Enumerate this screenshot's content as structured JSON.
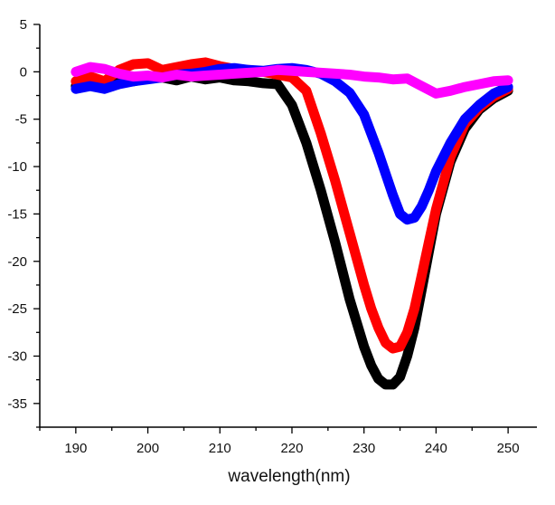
{
  "chart_data": {
    "type": "line",
    "title": "",
    "xlabel": "wavelength(nm)",
    "ylabel": "",
    "xlim": [
      185,
      254
    ],
    "ylim": [
      -37.5,
      5
    ],
    "xticks": [
      190,
      200,
      210,
      220,
      230,
      240,
      250
    ],
    "yticks": [
      5,
      0,
      -5,
      -10,
      -15,
      -20,
      -25,
      -30,
      -35
    ],
    "series": [
      {
        "name": "black",
        "color": "#000000",
        "x": [
          190,
          192,
          194,
          196,
          198,
          200,
          202,
          204,
          206,
          208,
          210,
          212,
          214,
          216,
          218,
          220,
          222,
          224,
          226,
          228,
          230,
          231,
          232,
          233,
          234,
          235,
          236,
          237,
          238,
          239,
          240,
          242,
          244,
          246,
          248,
          250
        ],
        "y": [
          -1.5,
          -1.0,
          -1.3,
          -0.8,
          -1.0,
          -0.7,
          -0.6,
          -0.9,
          -0.5,
          -0.8,
          -0.6,
          -0.9,
          -1.0,
          -1.2,
          -1.3,
          -3.5,
          -7.5,
          -12.5,
          -18.0,
          -24.0,
          -29.0,
          -31.0,
          -32.4,
          -33.0,
          -33.0,
          -32.2,
          -30.0,
          -27.0,
          -23.0,
          -19.0,
          -15.0,
          -9.5,
          -6.0,
          -4.0,
          -2.8,
          -2.0
        ]
      },
      {
        "name": "red",
        "color": "#ff0000",
        "x": [
          190,
          192,
          194,
          196,
          198,
          200,
          202,
          204,
          206,
          208,
          210,
          212,
          214,
          216,
          218,
          220,
          222,
          224,
          226,
          228,
          230,
          231,
          232,
          233,
          234,
          235,
          236,
          237,
          238,
          239,
          240,
          242,
          244,
          246,
          248,
          250
        ],
        "y": [
          -1.0,
          -0.5,
          -1.0,
          0.2,
          0.8,
          0.9,
          0.2,
          0.5,
          0.8,
          1.0,
          0.6,
          0.3,
          0.2,
          0.0,
          -0.3,
          -0.6,
          -2.0,
          -6.5,
          -11.5,
          -17.0,
          -22.5,
          -25.0,
          -27.0,
          -28.6,
          -29.2,
          -29.0,
          -27.5,
          -25.0,
          -21.5,
          -18.0,
          -14.5,
          -9.0,
          -5.5,
          -3.8,
          -2.6,
          -1.8
        ]
      },
      {
        "name": "blue",
        "color": "#0000ff",
        "x": [
          190,
          192,
          194,
          196,
          198,
          200,
          202,
          204,
          206,
          208,
          210,
          212,
          214,
          216,
          218,
          220,
          222,
          224,
          226,
          228,
          230,
          232,
          234,
          235,
          236,
          237,
          238,
          239,
          240,
          242,
          244,
          246,
          248,
          250
        ],
        "y": [
          -1.8,
          -1.5,
          -1.8,
          -1.3,
          -1.0,
          -0.8,
          -0.6,
          -0.3,
          -0.2,
          0.0,
          0.3,
          0.4,
          0.2,
          0.1,
          0.3,
          0.4,
          0.2,
          -0.2,
          -1.0,
          -2.2,
          -4.5,
          -8.5,
          -13.0,
          -15.0,
          -15.6,
          -15.4,
          -14.2,
          -12.5,
          -10.5,
          -7.5,
          -5.0,
          -3.5,
          -2.3,
          -1.6
        ]
      },
      {
        "name": "magenta",
        "color": "#ff00ff",
        "x": [
          190,
          192,
          194,
          196,
          198,
          200,
          202,
          204,
          206,
          208,
          210,
          212,
          214,
          216,
          218,
          220,
          222,
          224,
          226,
          228,
          230,
          232,
          234,
          236,
          238,
          240,
          242,
          244,
          246,
          248,
          250
        ],
        "y": [
          0.0,
          0.5,
          0.3,
          -0.2,
          -0.5,
          -0.4,
          -0.6,
          -0.3,
          -0.5,
          -0.4,
          -0.3,
          -0.2,
          -0.1,
          0.0,
          0.2,
          0.1,
          0.0,
          -0.1,
          -0.2,
          -0.3,
          -0.5,
          -0.6,
          -0.8,
          -0.7,
          -1.5,
          -2.3,
          -2.0,
          -1.6,
          -1.3,
          -1.0,
          -0.9
        ]
      }
    ]
  }
}
